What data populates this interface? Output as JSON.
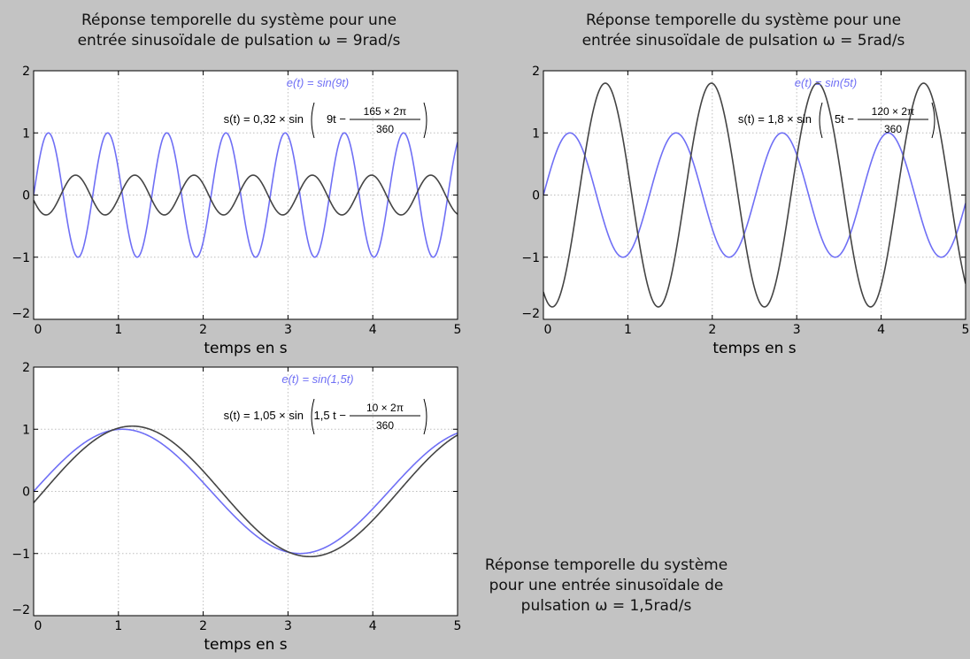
{
  "captions": {
    "top_left": [
      "Réponse temporelle du système pour une",
      "entrée sinusoïdale de pulsation ω = 9rad/s"
    ],
    "top_right": [
      "Réponse temporelle du système pour une",
      "entrée sinusoïdale de pulsation ω = 5rad/s"
    ],
    "bottom_right": [
      "Réponse temporelle du système",
      "pour une entrée sinusoïdale de",
      "pulsation ω = 1,5rad/s"
    ]
  },
  "colors": {
    "input": "#6f6ff5",
    "output": "#444444",
    "grid": "#bdbdbd",
    "axes": "#000000"
  },
  "chart_data": [
    {
      "type": "line",
      "xlabel": "temps en s",
      "ylabel": "",
      "xlim": [
        0,
        5
      ],
      "ylim": [
        -2,
        2
      ],
      "x_ticks": [
        "0",
        "1",
        "2",
        "3",
        "4",
        "5"
      ],
      "y_ticks": [
        "−2",
        "−1",
        "0",
        "1",
        "2"
      ],
      "grid": true,
      "omega": 9,
      "equations": {
        "input": "e(t) = sin(9t)",
        "output_prefix": "s(t) = 0,32 × sin",
        "output_arg": "9t −",
        "output_num": "165 × 2π",
        "output_den": "360"
      },
      "series": [
        {
          "name": "e(t)",
          "amplitude": 1,
          "phase_deg": 0,
          "role": "input"
        },
        {
          "name": "s(t)",
          "amplitude": 0.32,
          "phase_deg": -165,
          "role": "output"
        }
      ]
    },
    {
      "type": "line",
      "xlabel": "temps en s",
      "ylabel": "",
      "xlim": [
        0,
        5
      ],
      "ylim": [
        -2,
        2
      ],
      "x_ticks": [
        "0",
        "1",
        "2",
        "3",
        "4",
        "5"
      ],
      "y_ticks": [
        "−2",
        "−1",
        "0",
        "1",
        "2"
      ],
      "grid": true,
      "omega": 5,
      "equations": {
        "input": "e(t) = sin(5t)",
        "output_prefix": "s(t) = 1,8 × sin",
        "output_arg": "5t −",
        "output_num": "120 × 2π",
        "output_den": "360"
      },
      "series": [
        {
          "name": "e(t)",
          "amplitude": 1,
          "phase_deg": 0,
          "role": "input"
        },
        {
          "name": "s(t)",
          "amplitude": 1.8,
          "phase_deg": -120,
          "role": "output"
        }
      ]
    },
    {
      "type": "line",
      "xlabel": "temps en s",
      "ylabel": "",
      "xlim": [
        0,
        5
      ],
      "ylim": [
        -2,
        2
      ],
      "x_ticks": [
        "0",
        "1",
        "2",
        "3",
        "4",
        "5"
      ],
      "y_ticks": [
        "−2",
        "−1",
        "0",
        "1",
        "2"
      ],
      "grid": true,
      "omega": 1.5,
      "equations": {
        "input": "e(t) = sin(1,5t)",
        "output_prefix": "s(t) = 1,05 × sin",
        "output_arg": "1,5 t −",
        "output_num": "10 × 2π",
        "output_den": "360"
      },
      "series": [
        {
          "name": "e(t)",
          "amplitude": 1,
          "phase_deg": 0,
          "role": "input"
        },
        {
          "name": "s(t)",
          "amplitude": 1.05,
          "phase_deg": -10,
          "role": "output"
        }
      ]
    }
  ]
}
